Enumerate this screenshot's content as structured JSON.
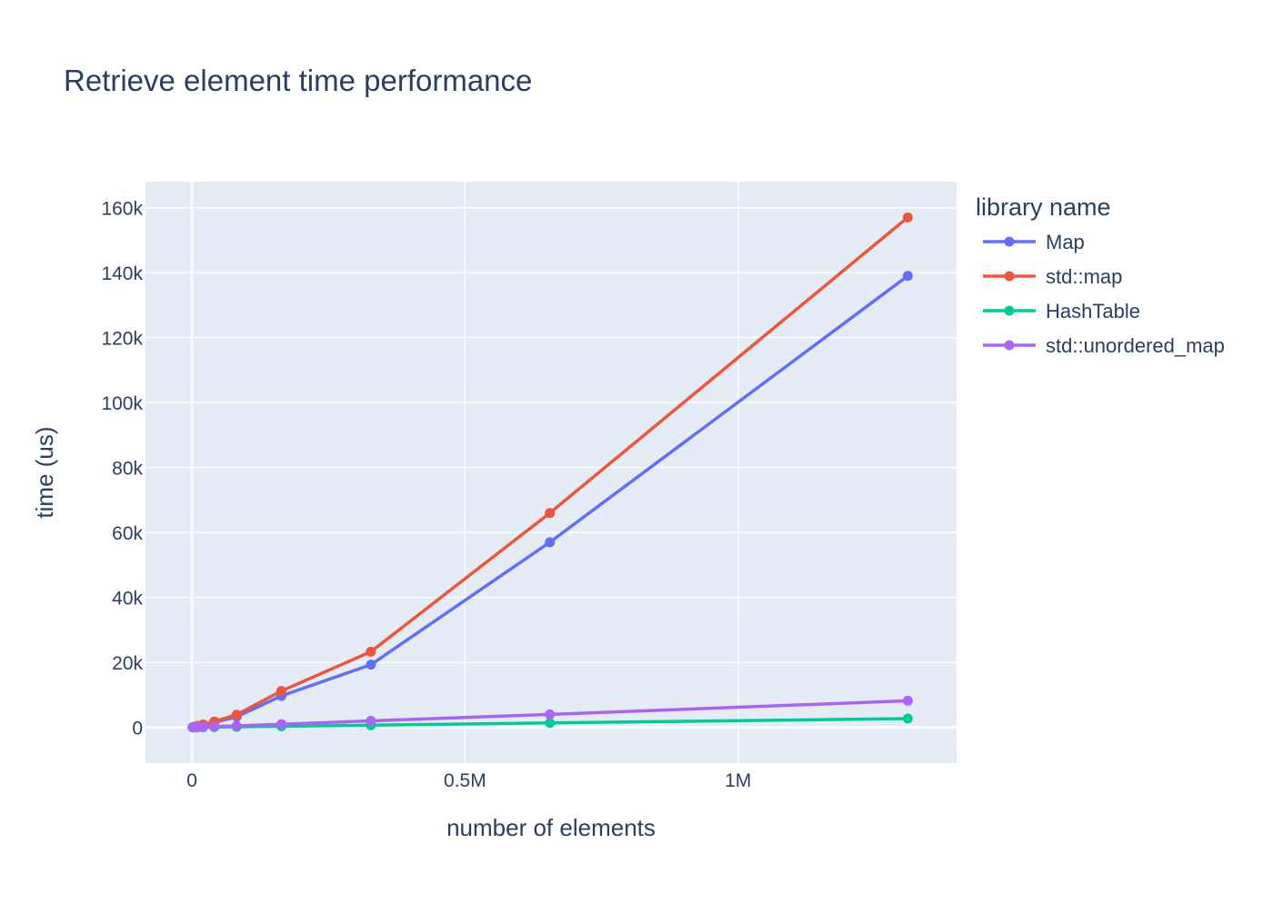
{
  "chart_data": {
    "type": "line",
    "title": "Retrieve element time performance",
    "xlabel": "number of elements",
    "ylabel": "time (us)",
    "xlim": [
      -85000,
      1400000
    ],
    "ylim": [
      -11000,
      168000
    ],
    "x_ticks": [
      {
        "value": 0,
        "label": "0"
      },
      {
        "value": 500000,
        "label": "0.5M"
      },
      {
        "value": 1000000,
        "label": "1M"
      }
    ],
    "y_ticks": [
      {
        "value": 0,
        "label": "0"
      },
      {
        "value": 20000,
        "label": "20k"
      },
      {
        "value": 40000,
        "label": "40k"
      },
      {
        "value": 60000,
        "label": "60k"
      },
      {
        "value": 80000,
        "label": "80k"
      },
      {
        "value": 100000,
        "label": "100k"
      },
      {
        "value": 120000,
        "label": "120k"
      },
      {
        "value": 140000,
        "label": "140k"
      },
      {
        "value": 160000,
        "label": "160k"
      }
    ],
    "grid": true,
    "legend_title": "library name",
    "legend_position": "right",
    "x": [
      1280,
      2560,
      5120,
      10240,
      20480,
      40960,
      81920,
      163840,
      327680,
      655360,
      1310720
    ],
    "series": [
      {
        "name": "Map",
        "color": "#636efa",
        "values": [
          30,
          70,
          150,
          340,
          700,
          1500,
          3300,
          9700,
          19300,
          57000,
          139000
        ]
      },
      {
        "name": "std::map",
        "color": "#ef553b",
        "values": [
          40,
          90,
          200,
          450,
          900,
          1800,
          3900,
          11200,
          23300,
          66000,
          157000
        ]
      },
      {
        "name": "HashTable",
        "color": "#00cc96",
        "values": [
          2,
          4,
          8,
          15,
          35,
          70,
          150,
          320,
          650,
          1350,
          2700
        ]
      },
      {
        "name": "std::unordered_map",
        "color": "#ab63fa",
        "values": [
          5,
          10,
          25,
          50,
          110,
          230,
          470,
          980,
          2000,
          4000,
          8200
        ]
      }
    ]
  }
}
